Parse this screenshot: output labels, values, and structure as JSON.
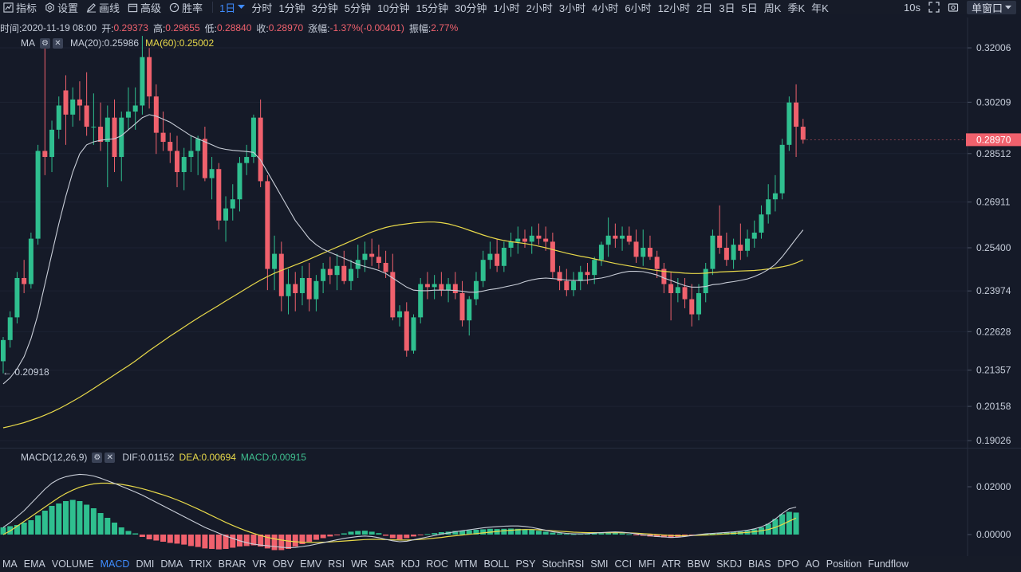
{
  "toolbar": {
    "items": [
      {
        "label": "指标",
        "icon": "chart-icon"
      },
      {
        "label": "设置",
        "icon": "gear-icon"
      },
      {
        "label": "画线",
        "icon": "pencil-icon"
      },
      {
        "label": "高级",
        "icon": "calendar-icon"
      },
      {
        "label": "胜率",
        "icon": "gauge-icon"
      }
    ],
    "active_timeframe": "1日",
    "timeframes": [
      "分时",
      "1分钟",
      "3分钟",
      "5分钟",
      "10分钟",
      "15分钟",
      "30分钟",
      "1小时",
      "2小时",
      "3小时",
      "4小时",
      "6小时",
      "12小时",
      "2日",
      "3日",
      "5日",
      "周K",
      "季K",
      "年K"
    ],
    "refresh": "10s",
    "window_mode": "单窗口"
  },
  "info": {
    "time_label": "时间:",
    "time": "2020-11-19 08:00",
    "open_label": "开:",
    "open": "0.29373",
    "high_label": "高:",
    "high": "0.29655",
    "low_label": "低:",
    "low": "0.28840",
    "close_label": "收:",
    "close": "0.28970",
    "change_label": "涨幅:",
    "change": "-1.37%(-0.00401)",
    "amplitude_label": "振幅:",
    "amplitude": "2.77%"
  },
  "ma_legend": {
    "name": "MA",
    "ma20": "MA(20):0.25986",
    "ma60": "MA(60):0.25002"
  },
  "macd_legend": {
    "name": "MACD(12,26,9)",
    "dif": "DIF:0.01152",
    "dea": "DEA:0.00694",
    "macd": "MACD:0.00915"
  },
  "price_axis": {
    "ticks": [
      "0.32006",
      "0.30209",
      "0.28512",
      "0.26911",
      "0.25400",
      "0.23974",
      "0.22628",
      "0.21357",
      "0.20158",
      "0.19026"
    ],
    "current_price": "0.28970",
    "min_marker": "← 0.20918"
  },
  "macd_axis": {
    "ticks": [
      "0.02000",
      "0.00000"
    ]
  },
  "colors": {
    "background": "#151a28",
    "up": "#2fbf8f",
    "down": "#f0616d",
    "ma20": "#c9ced8",
    "ma60": "#e8d94a",
    "accent": "#3f8cff"
  },
  "indicators": [
    "MA",
    "EMA",
    "VOLUME",
    "MACD",
    "DMI",
    "DMA",
    "TRIX",
    "BRAR",
    "VR",
    "OBV",
    "EMV",
    "RSI",
    "WR",
    "SAR",
    "KDJ",
    "ROC",
    "MTM",
    "BOLL",
    "PSY",
    "StochRSI",
    "SMI",
    "CCI",
    "MFI",
    "ATR",
    "BBW",
    "SKDJ",
    "BIAS",
    "DPO",
    "AO",
    "Position",
    "Fundflow"
  ],
  "active_indicator": "MACD",
  "chart_data": {
    "type": "candlestick",
    "ylim": [
      0.1895,
      0.3285
    ],
    "candles": [
      [
        0.2165,
        0.2245,
        0.2125,
        0.2235
      ],
      [
        0.2235,
        0.233,
        0.221,
        0.231
      ],
      [
        0.231,
        0.246,
        0.229,
        0.244
      ],
      [
        0.244,
        0.25,
        0.239,
        0.242
      ],
      [
        0.242,
        0.259,
        0.2405,
        0.257
      ],
      [
        0.257,
        0.288,
        0.255,
        0.286
      ],
      [
        0.286,
        0.323,
        0.278,
        0.284
      ],
      [
        0.284,
        0.296,
        0.279,
        0.293
      ],
      [
        0.293,
        0.304,
        0.29,
        0.301
      ],
      [
        0.306,
        0.311,
        0.288,
        0.298
      ],
      [
        0.298,
        0.307,
        0.294,
        0.303
      ],
      [
        0.303,
        0.309,
        0.296,
        0.301
      ],
      [
        0.301,
        0.312,
        0.291,
        0.294
      ],
      [
        0.294,
        0.305,
        0.288,
        0.294
      ],
      [
        0.294,
        0.302,
        0.286,
        0.289
      ],
      [
        0.289,
        0.301,
        0.274,
        0.297
      ],
      [
        0.297,
        0.303,
        0.279,
        0.284
      ],
      [
        0.284,
        0.299,
        0.276,
        0.297
      ],
      [
        0.297,
        0.307,
        0.293,
        0.299
      ],
      [
        0.299,
        0.307,
        0.293,
        0.301
      ],
      [
        0.301,
        0.324,
        0.298,
        0.317
      ],
      [
        0.317,
        0.32,
        0.3,
        0.304
      ],
      [
        0.304,
        0.308,
        0.285,
        0.292
      ],
      [
        0.292,
        0.299,
        0.286,
        0.289
      ],
      [
        0.289,
        0.292,
        0.282,
        0.286
      ],
      [
        0.286,
        0.291,
        0.274,
        0.279
      ],
      [
        0.279,
        0.287,
        0.273,
        0.284
      ],
      [
        0.284,
        0.291,
        0.279,
        0.286
      ],
      [
        0.286,
        0.291,
        0.278,
        0.29
      ],
      [
        0.29,
        0.294,
        0.276,
        0.277
      ],
      [
        0.277,
        0.284,
        0.27,
        0.28
      ],
      [
        0.28,
        0.282,
        0.26,
        0.263
      ],
      [
        0.263,
        0.271,
        0.256,
        0.267
      ],
      [
        0.267,
        0.275,
        0.263,
        0.27
      ],
      [
        0.27,
        0.284,
        0.266,
        0.282
      ],
      [
        0.282,
        0.288,
        0.278,
        0.284
      ],
      [
        0.284,
        0.298,
        0.282,
        0.297
      ],
      [
        0.297,
        0.303,
        0.274,
        0.276
      ],
      [
        0.276,
        0.278,
        0.24,
        0.247
      ],
      [
        0.247,
        0.258,
        0.24,
        0.252
      ],
      [
        0.252,
        0.256,
        0.233,
        0.238
      ],
      [
        0.238,
        0.247,
        0.232,
        0.242
      ],
      [
        0.242,
        0.246,
        0.233,
        0.239
      ],
      [
        0.239,
        0.248,
        0.235,
        0.244
      ],
      [
        0.244,
        0.249,
        0.233,
        0.237
      ],
      [
        0.237,
        0.245,
        0.233,
        0.243
      ],
      [
        0.243,
        0.249,
        0.239,
        0.247
      ],
      [
        0.247,
        0.251,
        0.242,
        0.245
      ],
      [
        0.245,
        0.252,
        0.24,
        0.248
      ],
      [
        0.248,
        0.253,
        0.242,
        0.243
      ],
      [
        0.243,
        0.25,
        0.24,
        0.247
      ],
      [
        0.247,
        0.255,
        0.244,
        0.25
      ],
      [
        0.25,
        0.256,
        0.246,
        0.252
      ],
      [
        0.252,
        0.257,
        0.248,
        0.251
      ],
      [
        0.251,
        0.255,
        0.247,
        0.249
      ],
      [
        0.249,
        0.253,
        0.244,
        0.246
      ],
      [
        0.246,
        0.252,
        0.23,
        0.231
      ],
      [
        0.231,
        0.235,
        0.228,
        0.233
      ],
      [
        0.233,
        0.236,
        0.218,
        0.22
      ],
      [
        0.22,
        0.232,
        0.219,
        0.231
      ],
      [
        0.231,
        0.244,
        0.229,
        0.242
      ],
      [
        0.242,
        0.246,
        0.237,
        0.241
      ],
      [
        0.241,
        0.245,
        0.237,
        0.242
      ],
      [
        0.242,
        0.246,
        0.238,
        0.24
      ],
      [
        0.24,
        0.244,
        0.236,
        0.242
      ],
      [
        0.242,
        0.246,
        0.237,
        0.239
      ],
      [
        0.239,
        0.243,
        0.228,
        0.23
      ],
      [
        0.23,
        0.238,
        0.225,
        0.237
      ],
      [
        0.237,
        0.246,
        0.235,
        0.243
      ],
      [
        0.243,
        0.253,
        0.241,
        0.25
      ],
      [
        0.25,
        0.256,
        0.247,
        0.252
      ],
      [
        0.252,
        0.257,
        0.246,
        0.248
      ],
      [
        0.248,
        0.256,
        0.246,
        0.254
      ],
      [
        0.254,
        0.259,
        0.251,
        0.256
      ],
      [
        0.256,
        0.261,
        0.252,
        0.257
      ],
      [
        0.257,
        0.26,
        0.254,
        0.256
      ],
      [
        0.256,
        0.261,
        0.252,
        0.258
      ],
      [
        0.258,
        0.262,
        0.255,
        0.257
      ],
      [
        0.257,
        0.261,
        0.253,
        0.256
      ],
      [
        0.256,
        0.259,
        0.244,
        0.246
      ],
      [
        0.246,
        0.248,
        0.24,
        0.243
      ],
      [
        0.243,
        0.247,
        0.238,
        0.24
      ],
      [
        0.24,
        0.246,
        0.238,
        0.243
      ],
      [
        0.243,
        0.248,
        0.24,
        0.246
      ],
      [
        0.246,
        0.249,
        0.242,
        0.245
      ],
      [
        0.245,
        0.251,
        0.242,
        0.25
      ],
      [
        0.25,
        0.256,
        0.248,
        0.255
      ],
      [
        0.255,
        0.264,
        0.251,
        0.258
      ],
      [
        0.258,
        0.262,
        0.254,
        0.257
      ],
      [
        0.257,
        0.261,
        0.253,
        0.258
      ],
      [
        0.258,
        0.261,
        0.255,
        0.256
      ],
      [
        0.256,
        0.26,
        0.249,
        0.251
      ],
      [
        0.251,
        0.26,
        0.248,
        0.254
      ],
      [
        0.254,
        0.258,
        0.25,
        0.251
      ],
      [
        0.251,
        0.253,
        0.244,
        0.247
      ],
      [
        0.247,
        0.249,
        0.239,
        0.242
      ],
      [
        0.242,
        0.246,
        0.23,
        0.239
      ],
      [
        0.239,
        0.244,
        0.236,
        0.241
      ],
      [
        0.241,
        0.244,
        0.234,
        0.237
      ],
      [
        0.237,
        0.242,
        0.228,
        0.232
      ],
      [
        0.232,
        0.242,
        0.23,
        0.239
      ],
      [
        0.239,
        0.249,
        0.236,
        0.247
      ],
      [
        0.247,
        0.26,
        0.245,
        0.258
      ],
      [
        0.258,
        0.268,
        0.252,
        0.254
      ],
      [
        0.254,
        0.259,
        0.248,
        0.25
      ],
      [
        0.25,
        0.257,
        0.247,
        0.255
      ],
      [
        0.255,
        0.262,
        0.25,
        0.253
      ],
      [
        0.253,
        0.26,
        0.251,
        0.257
      ],
      [
        0.257,
        0.263,
        0.254,
        0.259
      ],
      [
        0.259,
        0.268,
        0.257,
        0.265
      ],
      [
        0.265,
        0.275,
        0.262,
        0.27
      ],
      [
        0.27,
        0.278,
        0.266,
        0.272
      ],
      [
        0.272,
        0.29,
        0.27,
        0.288
      ],
      [
        0.288,
        0.304,
        0.286,
        0.302
      ],
      [
        0.302,
        0.308,
        0.284,
        0.294
      ],
      [
        0.294,
        0.2966,
        0.2884,
        0.2897
      ]
    ],
    "ma20": [
      0.209,
      0.211,
      0.214,
      0.218,
      0.224,
      0.232,
      0.242,
      0.252,
      0.262,
      0.271,
      0.279,
      0.285,
      0.288,
      0.289,
      0.2895,
      0.2898,
      0.29,
      0.291,
      0.293,
      0.295,
      0.297,
      0.298,
      0.2975,
      0.2965,
      0.2955,
      0.294,
      0.2925,
      0.291,
      0.29,
      0.289,
      0.288,
      0.287,
      0.2865,
      0.2862,
      0.286,
      0.2858,
      0.2855,
      0.283,
      0.279,
      0.275,
      0.271,
      0.267,
      0.263,
      0.26,
      0.257,
      0.255,
      0.2535,
      0.2525,
      0.2515,
      0.2505,
      0.2495,
      0.2485,
      0.2478,
      0.2472,
      0.2465,
      0.2455,
      0.244,
      0.2425,
      0.241,
      0.24,
      0.2398,
      0.2398,
      0.24,
      0.24,
      0.24,
      0.2399,
      0.2396,
      0.2393,
      0.2393,
      0.2397,
      0.2402,
      0.2405,
      0.241,
      0.2415,
      0.242,
      0.2428,
      0.2434,
      0.2438,
      0.244,
      0.2438,
      0.2436,
      0.2433,
      0.2432,
      0.2432,
      0.2433,
      0.2437,
      0.244,
      0.2445,
      0.2452,
      0.2458,
      0.2462,
      0.2462,
      0.2461,
      0.2456,
      0.245,
      0.244,
      0.2432,
      0.2423,
      0.2415,
      0.241,
      0.241,
      0.2412,
      0.2418,
      0.242,
      0.2425,
      0.2428,
      0.2432,
      0.2437,
      0.2445,
      0.2455,
      0.2468,
      0.2485,
      0.251,
      0.254,
      0.257,
      0.2599
    ],
    "ma60": [
      0.1945,
      0.195,
      0.1956,
      0.1962,
      0.197,
      0.1978,
      0.1987,
      0.1997,
      0.2008,
      0.202,
      0.2033,
      0.2046,
      0.206,
      0.2075,
      0.209,
      0.2105,
      0.212,
      0.2135,
      0.215,
      0.2166,
      0.2183,
      0.22,
      0.2216,
      0.2232,
      0.2248,
      0.2263,
      0.2278,
      0.2293,
      0.2308,
      0.2322,
      0.2336,
      0.235,
      0.2364,
      0.2378,
      0.2392,
      0.2406,
      0.242,
      0.2433,
      0.2445,
      0.2456,
      0.2465,
      0.2474,
      0.2483,
      0.2492,
      0.2502,
      0.2512,
      0.2522,
      0.2532,
      0.2542,
      0.2552,
      0.2562,
      0.2572,
      0.2582,
      0.2592,
      0.26,
      0.2607,
      0.2612,
      0.2616,
      0.2619,
      0.2622,
      0.2624,
      0.2625,
      0.2625,
      0.2623,
      0.2619,
      0.2613,
      0.2606,
      0.2598,
      0.259,
      0.2582,
      0.2575,
      0.2569,
      0.2564,
      0.256,
      0.2557,
      0.2554,
      0.255,
      0.2545,
      0.254,
      0.2534,
      0.2528,
      0.2522,
      0.2517,
      0.2512,
      0.2508,
      0.2503,
      0.2498,
      0.2493,
      0.2488,
      0.2484,
      0.248,
      0.2476,
      0.2472,
      0.2468,
      0.2465,
      0.2462,
      0.246,
      0.2458,
      0.2456,
      0.2455,
      0.2455,
      0.2456,
      0.2458,
      0.246,
      0.2461,
      0.2462,
      0.2463,
      0.2464,
      0.2465,
      0.2467,
      0.247,
      0.2473,
      0.2477,
      0.2482,
      0.249,
      0.25
    ],
    "macd_ylim": [
      -0.007,
      0.029
    ],
    "macd_hist": [
      0.003,
      0.0035,
      0.004,
      0.005,
      0.006,
      0.008,
      0.01,
      0.012,
      0.013,
      0.014,
      0.0145,
      0.014,
      0.0125,
      0.011,
      0.009,
      0.007,
      0.005,
      0.003,
      0.0015,
      0.0005,
      -0.001,
      -0.002,
      -0.0025,
      -0.003,
      -0.0035,
      -0.0038,
      -0.0042,
      -0.0048,
      -0.0052,
      -0.0058,
      -0.006,
      -0.0062,
      -0.006,
      -0.0055,
      -0.005,
      -0.0048,
      -0.0045,
      -0.005,
      -0.0058,
      -0.0065,
      -0.0065,
      -0.006,
      -0.005,
      -0.004,
      -0.003,
      -0.0022,
      -0.0015,
      -0.0008,
      -0.0002,
      0.0005,
      0.0012,
      0.0015,
      0.0016,
      0.0012,
      0.0006,
      -0.0005,
      -0.0015,
      -0.002,
      -0.0015,
      -0.0008,
      -0.0002,
      0.0002,
      0.0006,
      0.001,
      0.0012,
      0.0015,
      0.0016,
      0.0018,
      0.002,
      0.0022,
      0.0024,
      0.0023,
      0.0024,
      0.0025,
      0.0024,
      0.0022,
      0.002,
      0.0016,
      0.0012,
      0.0008,
      0.0005,
      0.0003,
      0.0002,
      0.0003,
      0.0004,
      0.0005,
      0.0006,
      0.0008,
      0.0007,
      0.0005,
      0.0002,
      -0.0001,
      -0.0005,
      -0.0008,
      -0.001,
      -0.0012,
      -0.0014,
      -0.0012,
      -0.0008,
      -0.0004,
      0.0,
      0.0003,
      0.0005,
      0.0007,
      0.0008,
      0.001,
      0.0012,
      0.0016,
      0.0022,
      0.003,
      0.0045,
      0.0065,
      0.0085,
      0.0095,
      0.0092
    ],
    "dif": [
      0.003,
      0.005,
      0.0075,
      0.01,
      0.013,
      0.016,
      0.019,
      0.0215,
      0.0232,
      0.0242,
      0.0248,
      0.0252,
      0.025,
      0.0245,
      0.0236,
      0.0225,
      0.0214,
      0.0202,
      0.019,
      0.0178,
      0.0165,
      0.015,
      0.0135,
      0.012,
      0.0105,
      0.009,
      0.0075,
      0.006,
      0.0045,
      0.003,
      0.0018,
      0.0006,
      -0.0006,
      -0.0016,
      -0.0026,
      -0.0034,
      -0.004,
      -0.0044,
      -0.0047,
      -0.005,
      -0.0053,
      -0.0055,
      -0.0054,
      -0.005,
      -0.0046,
      -0.004,
      -0.0034,
      -0.0028,
      -0.0022,
      -0.0016,
      -0.0012,
      -0.0008,
      -0.0006,
      -0.0008,
      -0.0013,
      -0.002,
      -0.0026,
      -0.003,
      -0.0028,
      -0.0022,
      -0.0016,
      -0.001,
      -0.0004,
      0.0002,
      0.0007,
      0.0012,
      0.0016,
      0.002,
      0.0024,
      0.0028,
      0.0031,
      0.0033,
      0.0035,
      0.0036,
      0.0036,
      0.0034,
      0.003,
      0.0024,
      0.0018,
      0.0012,
      0.0008,
      0.0005,
      0.0003,
      0.0003,
      0.0004,
      0.0006,
      0.0008,
      0.001,
      0.0011,
      0.001,
      0.0007,
      0.0003,
      -0.0001,
      -0.0005,
      -0.0008,
      -0.001,
      -0.0012,
      -0.0011,
      -0.0008,
      -0.0004,
      0.0,
      0.0003,
      0.0005,
      0.0007,
      0.0009,
      0.0011,
      0.0014,
      0.0018,
      0.0024,
      0.0032,
      0.0045,
      0.0065,
      0.0088,
      0.0108,
      0.0115
    ],
    "dea": [
      0.0,
      0.0015,
      0.0035,
      0.0055,
      0.0075,
      0.0095,
      0.0115,
      0.0135,
      0.0155,
      0.0172,
      0.0186,
      0.0198,
      0.0206,
      0.0212,
      0.0215,
      0.0215,
      0.0213,
      0.021,
      0.0205,
      0.0199,
      0.0192,
      0.0184,
      0.0175,
      0.0166,
      0.0156,
      0.0145,
      0.0133,
      0.012,
      0.0107,
      0.0093,
      0.0079,
      0.0065,
      0.0051,
      0.0038,
      0.0026,
      0.0015,
      0.0005,
      -0.0004,
      -0.0012,
      -0.0018,
      -0.0023,
      -0.0027,
      -0.003,
      -0.0032,
      -0.0033,
      -0.0033,
      -0.0032,
      -0.0031,
      -0.0029,
      -0.0027,
      -0.0025,
      -0.0023,
      -0.0021,
      -0.002,
      -0.002,
      -0.0021,
      -0.0022,
      -0.0023,
      -0.0023,
      -0.0022,
      -0.002,
      -0.0018,
      -0.0015,
      -0.0012,
      -0.0008,
      -0.0005,
      -0.0002,
      0.0001,
      0.0004,
      0.0007,
      0.001,
      0.0013,
      0.0016,
      0.0018,
      0.002,
      0.0021,
      0.0021,
      0.002,
      0.0018,
      0.0016,
      0.0014,
      0.0012,
      0.001,
      0.0009,
      0.0008,
      0.0008,
      0.0008,
      0.0008,
      0.0008,
      0.0008,
      0.0007,
      0.0006,
      0.0004,
      0.0002,
      0.0,
      -0.0002,
      -0.0004,
      -0.0005,
      -0.0005,
      -0.0004,
      -0.0003,
      -0.0002,
      -0.0001,
      0.0001,
      0.0003,
      0.0005,
      0.0007,
      0.0009,
      0.0012,
      0.0016,
      0.0021,
      0.003,
      0.0042,
      0.0056,
      0.0069
    ]
  }
}
